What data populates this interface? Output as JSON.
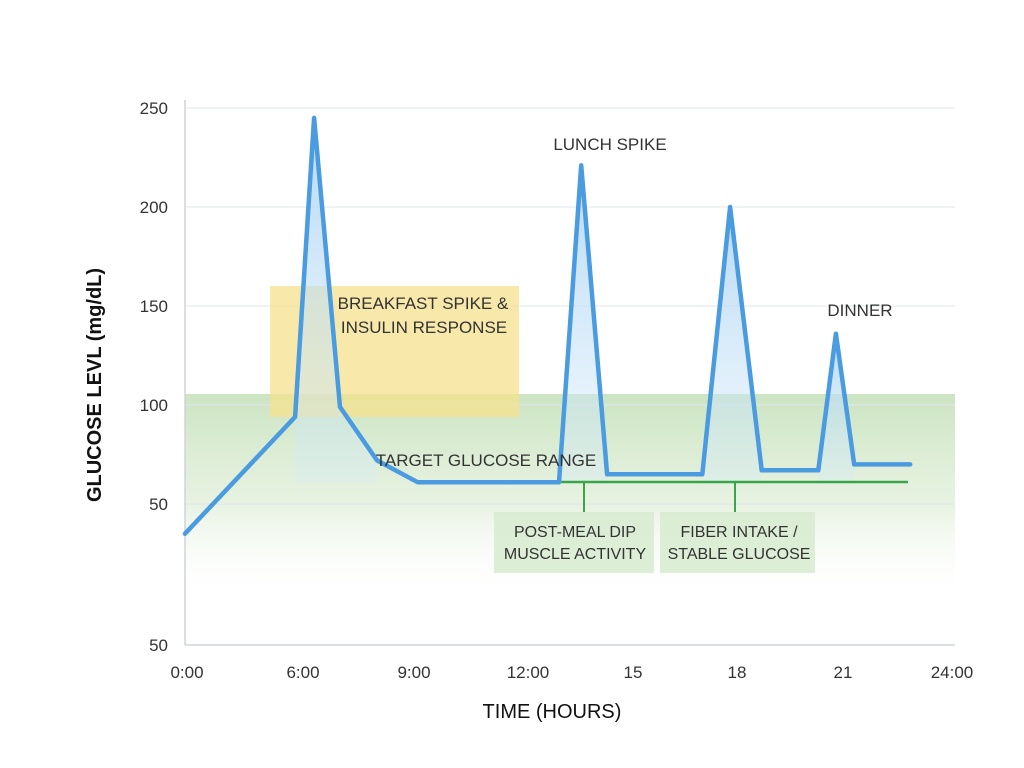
{
  "chart_data": {
    "type": "line",
    "title": "",
    "xlabel": "TIME (HOURS)",
    "ylabel": "GLUCOSE LEVL (mg/dL)",
    "y_ticks": [
      "250",
      "200",
      "150",
      "100",
      "50",
      "50"
    ],
    "x_ticks": [
      "0:00",
      "6:00",
      "9:00",
      "12:00",
      "15",
      "18",
      "21",
      "24:00"
    ],
    "grid": true,
    "series": [
      {
        "color": "#4a9be0",
        "points": [
          {
            "x": 0.0,
            "y": 35
          },
          {
            "x": 5.6,
            "y": 94
          },
          {
            "x": 6.3,
            "y": 245
          },
          {
            "x": 7.0,
            "y": 99
          },
          {
            "x": 8.0,
            "y": 72
          },
          {
            "x": 9.1,
            "y": 61
          },
          {
            "x": 13.0,
            "y": 61
          },
          {
            "x": 13.6,
            "y": 221
          },
          {
            "x": 14.3,
            "y": 65
          },
          {
            "x": 17.0,
            "y": 65
          },
          {
            "x": 17.8,
            "y": 200
          },
          {
            "x": 18.7,
            "y": 67
          },
          {
            "x": 20.3,
            "y": 67
          },
          {
            "x": 20.8,
            "y": 136
          },
          {
            "x": 21.3,
            "y": 70
          },
          {
            "x": 22.8,
            "y": 70
          }
        ]
      }
    ],
    "target_range": {
      "label": "TARGET GLUCOSE RANGE",
      "baseline_y": 61,
      "top_y": 105
    },
    "annotations": [
      {
        "id": "breakfast",
        "lines": [
          "BREAKFAST SPIKE &",
          "INSULIN RESPONSE"
        ]
      },
      {
        "id": "lunch",
        "lines": [
          "LUNCH SPIKE"
        ]
      },
      {
        "id": "dinner",
        "lines": [
          "DINNER"
        ]
      },
      {
        "id": "post_meal",
        "lines": [
          "POST-MEAL DIP",
          "MUSCLE ACTIVITY"
        ]
      },
      {
        "id": "fiber",
        "lines": [
          "FIBER INTAKE /",
          "STABLE GLUCOSE"
        ]
      }
    ],
    "colors": {
      "line": "#4a9be0",
      "fill": "#bcdcf5",
      "target_band": "#cfe6c6",
      "target_line": "#3aa64a",
      "breakfast_box": "#f7e49a",
      "annotation_box": "#d9ecd3"
    }
  }
}
